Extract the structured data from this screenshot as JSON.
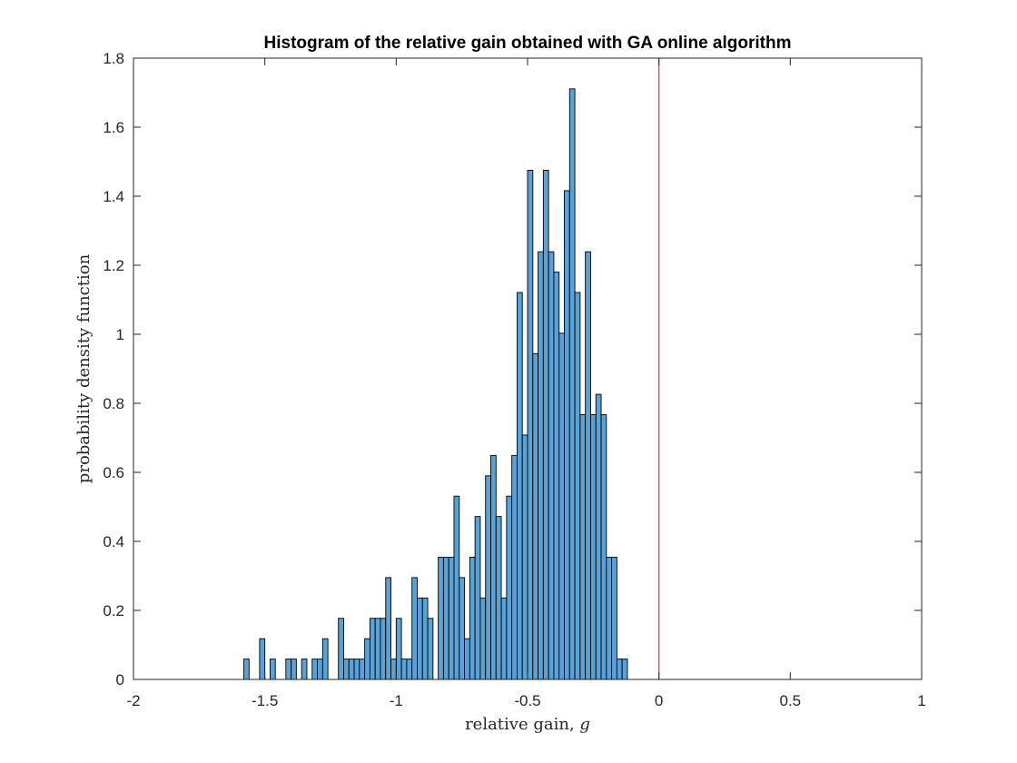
{
  "chart_data": {
    "type": "bar",
    "title": "Histogram of the relative gain obtained with GA online algorithm",
    "xlabel": "relative gain, ",
    "xlabel_var": "g",
    "ylabel": "probability density function",
    "xlim": [
      -2,
      1
    ],
    "ylim": [
      0,
      1.8
    ],
    "xticks": [
      "-2",
      "-1.5",
      "-1",
      "-0.5",
      "0",
      "0.5",
      "1"
    ],
    "xtick_values": [
      -2,
      -1.5,
      -1,
      -0.5,
      0,
      0.5,
      1
    ],
    "yticks": [
      "0",
      "0.2",
      "0.4",
      "0.6",
      "0.8",
      "1",
      "1.2",
      "1.4",
      "1.6",
      "1.8"
    ],
    "ytick_values": [
      0,
      0.2,
      0.4,
      0.6,
      0.8,
      1,
      1.2,
      1.4,
      1.6,
      1.8
    ],
    "grid": false,
    "bin_width": 0.02,
    "bin_start": -1.58,
    "values": [
      0.059,
      0,
      0,
      0.118,
      0,
      0.059,
      0,
      0,
      0.059,
      0.059,
      0,
      0.059,
      0,
      0.059,
      0.059,
      0.118,
      0,
      0,
      0.177,
      0.059,
      0.059,
      0.059,
      0.059,
      0.118,
      0.177,
      0.177,
      0.177,
      0.295,
      0.059,
      0.177,
      0.059,
      0.059,
      0.295,
      0.236,
      0.236,
      0.177,
      0,
      0.354,
      0.354,
      0.354,
      0.531,
      0.295,
      0.118,
      0.354,
      0.472,
      0.236,
      0.59,
      0.649,
      0.472,
      0.236,
      0.531,
      0.649,
      1.121,
      0.708,
      1.475,
      0.944,
      1.239,
      1.475,
      1.239,
      1.18,
      1.003,
      1.416,
      1.711,
      1.121,
      0.767,
      1.239,
      0.767,
      0.826,
      0.767,
      0.354,
      0.354,
      0.059,
      0.059
    ],
    "reference_line": {
      "x": 0,
      "color": "#e8302a"
    },
    "bar_color": "#5aa2d6"
  }
}
